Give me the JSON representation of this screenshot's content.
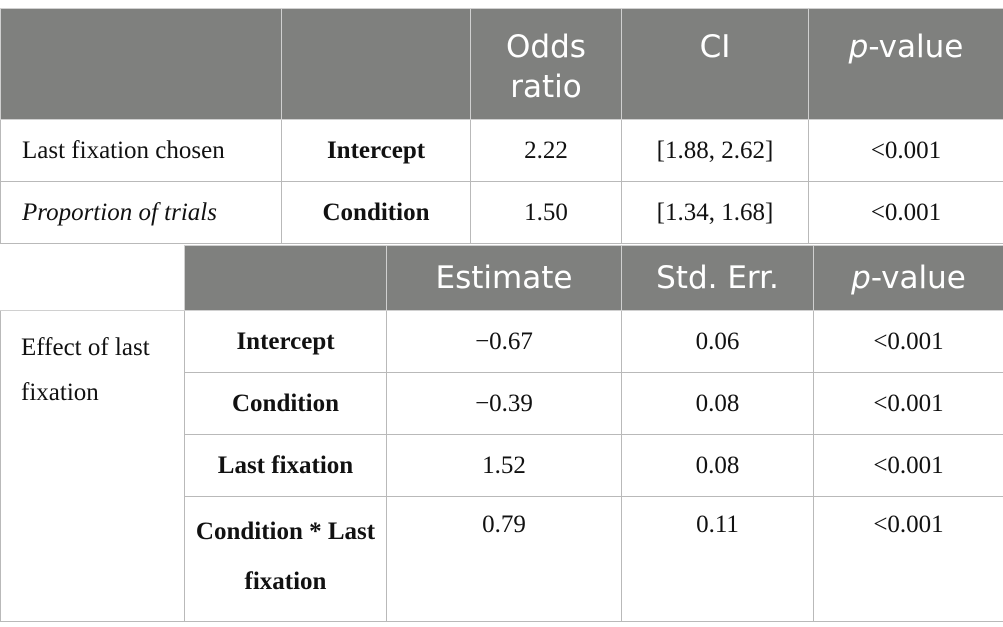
{
  "table1": {
    "headers": [
      "",
      "",
      "Odds ratio",
      "CI",
      "p-value"
    ],
    "header_odds": "Odds ratio",
    "header_ci": "CI",
    "header_p_italic": "p",
    "header_p_rest": "-value",
    "rows": [
      {
        "label": "Last fixation chosen",
        "term": "Intercept",
        "odds": "2.22",
        "ci": "[1.88, 2.62]",
        "p": "<0.001"
      },
      {
        "label": "Proportion of trials",
        "term": "Condition",
        "odds": "1.50",
        "ci": "[1.34, 1.68]",
        "p": "<0.001"
      }
    ]
  },
  "table2": {
    "header_estimate": "Estimate",
    "header_se": "Std. Err.",
    "header_p_italic": "p",
    "header_p_rest": "-value",
    "section_label": "Effect of last fixation",
    "rows": [
      {
        "term": "Intercept",
        "estimate": "−0.67",
        "se": "0.06",
        "p": "<0.001"
      },
      {
        "term": "Condition",
        "estimate": "−0.39",
        "se": "0.08",
        "p": "<0.001"
      },
      {
        "term": "Last fixation",
        "estimate": "1.52",
        "se": "0.08",
        "p": "<0.001"
      },
      {
        "term": "Condition * Last fixation",
        "estimate": "0.79",
        "se": "0.11",
        "p": "<0.001"
      }
    ]
  }
}
